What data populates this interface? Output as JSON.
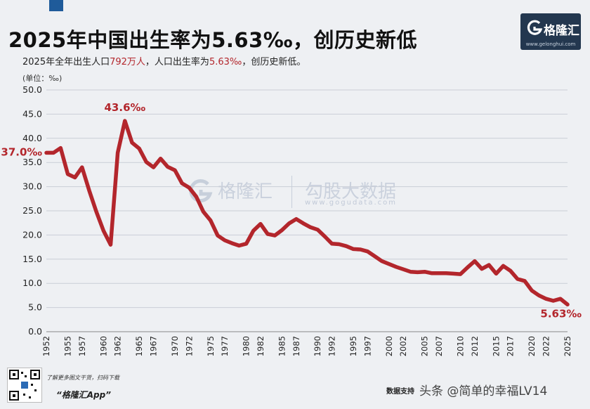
{
  "header": {
    "title": "2025年中国出生率为5.63‰，创历史新低",
    "subtitle_pre": "2025年全年出生人口",
    "subtitle_hl1": "792万人",
    "subtitle_mid": "，人口出生率为",
    "subtitle_hl2": "5.63‰",
    "subtitle_post": "，创历史新低。",
    "unit": "(单位：‰)"
  },
  "logo": {
    "name": "格隆汇",
    "url": "www.gelonghui.com"
  },
  "watermark": {
    "brand": "格隆汇",
    "partner": "勾股大数据",
    "url": "www.gogudata.com"
  },
  "footer": {
    "promo": "了解更多图文干货，扫码下载",
    "app": "“格隆汇App”",
    "source": "数据支持",
    "signature": "头条 @简单的幸福LV14"
  },
  "colors": {
    "line": "#b3262c",
    "accent": "#1f5b9a",
    "logo_bg": "#23374f"
  },
  "chart_data": {
    "type": "line",
    "title": "2025年中国出生率为5.63‰，创历史新低",
    "ylabel": "(单位：‰)",
    "ylim": [
      0,
      50
    ],
    "yticks": [
      "0.0",
      "5.0",
      "10.0",
      "15.0",
      "20.0",
      "25.0",
      "30.0",
      "35.0",
      "40.0",
      "45.0",
      "50.0"
    ],
    "xticks": [
      "1952",
      "1955",
      "1957",
      "1960",
      "1962",
      "1965",
      "1967",
      "1970",
      "1972",
      "1975",
      "1977",
      "1980",
      "1982",
      "1985",
      "1987",
      "1990",
      "1992",
      "1995",
      "1997",
      "2000",
      "2002",
      "2005",
      "2007",
      "2010",
      "2012",
      "2015",
      "2017",
      "2020",
      "2022",
      "2025"
    ],
    "grid": "horizontal",
    "annotations": [
      {
        "x": 1952,
        "label": "37.0‰"
      },
      {
        "x": 1963,
        "label": "43.6‰"
      },
      {
        "x": 2025,
        "label": "5.63‰"
      }
    ],
    "x": [
      1952,
      1953,
      1954,
      1955,
      1956,
      1957,
      1958,
      1959,
      1960,
      1961,
      1962,
      1963,
      1964,
      1965,
      1966,
      1967,
      1968,
      1969,
      1970,
      1971,
      1972,
      1973,
      1974,
      1975,
      1976,
      1977,
      1978,
      1979,
      1980,
      1981,
      1982,
      1983,
      1984,
      1985,
      1986,
      1987,
      1988,
      1989,
      1990,
      1991,
      1992,
      1993,
      1994,
      1995,
      1996,
      1997,
      1998,
      1999,
      2000,
      2001,
      2002,
      2003,
      2004,
      2005,
      2006,
      2007,
      2008,
      2009,
      2010,
      2011,
      2012,
      2013,
      2014,
      2015,
      2016,
      2017,
      2018,
      2019,
      2020,
      2021,
      2022,
      2023,
      2024,
      2025
    ],
    "values": [
      37.0,
      37.0,
      38.0,
      32.6,
      31.9,
      34.0,
      29.2,
      24.8,
      20.9,
      18.0,
      37.0,
      43.6,
      39.1,
      37.9,
      35.1,
      34.0,
      35.8,
      34.1,
      33.4,
      30.7,
      29.8,
      27.9,
      24.8,
      23.0,
      19.9,
      18.9,
      18.3,
      17.8,
      18.2,
      20.9,
      22.3,
      20.2,
      19.9,
      21.0,
      22.4,
      23.3,
      22.4,
      21.6,
      21.1,
      19.7,
      18.2,
      18.1,
      17.7,
      17.1,
      17.0,
      16.6,
      15.6,
      14.6,
      14.0,
      13.4,
      12.9,
      12.4,
      12.3,
      12.4,
      12.1,
      12.1,
      12.1,
      12.0,
      11.9,
      13.3,
      14.6,
      13.0,
      13.8,
      12.0,
      13.6,
      12.6,
      10.9,
      10.5,
      8.5,
      7.5,
      6.8,
      6.4,
      6.8,
      5.63
    ]
  }
}
